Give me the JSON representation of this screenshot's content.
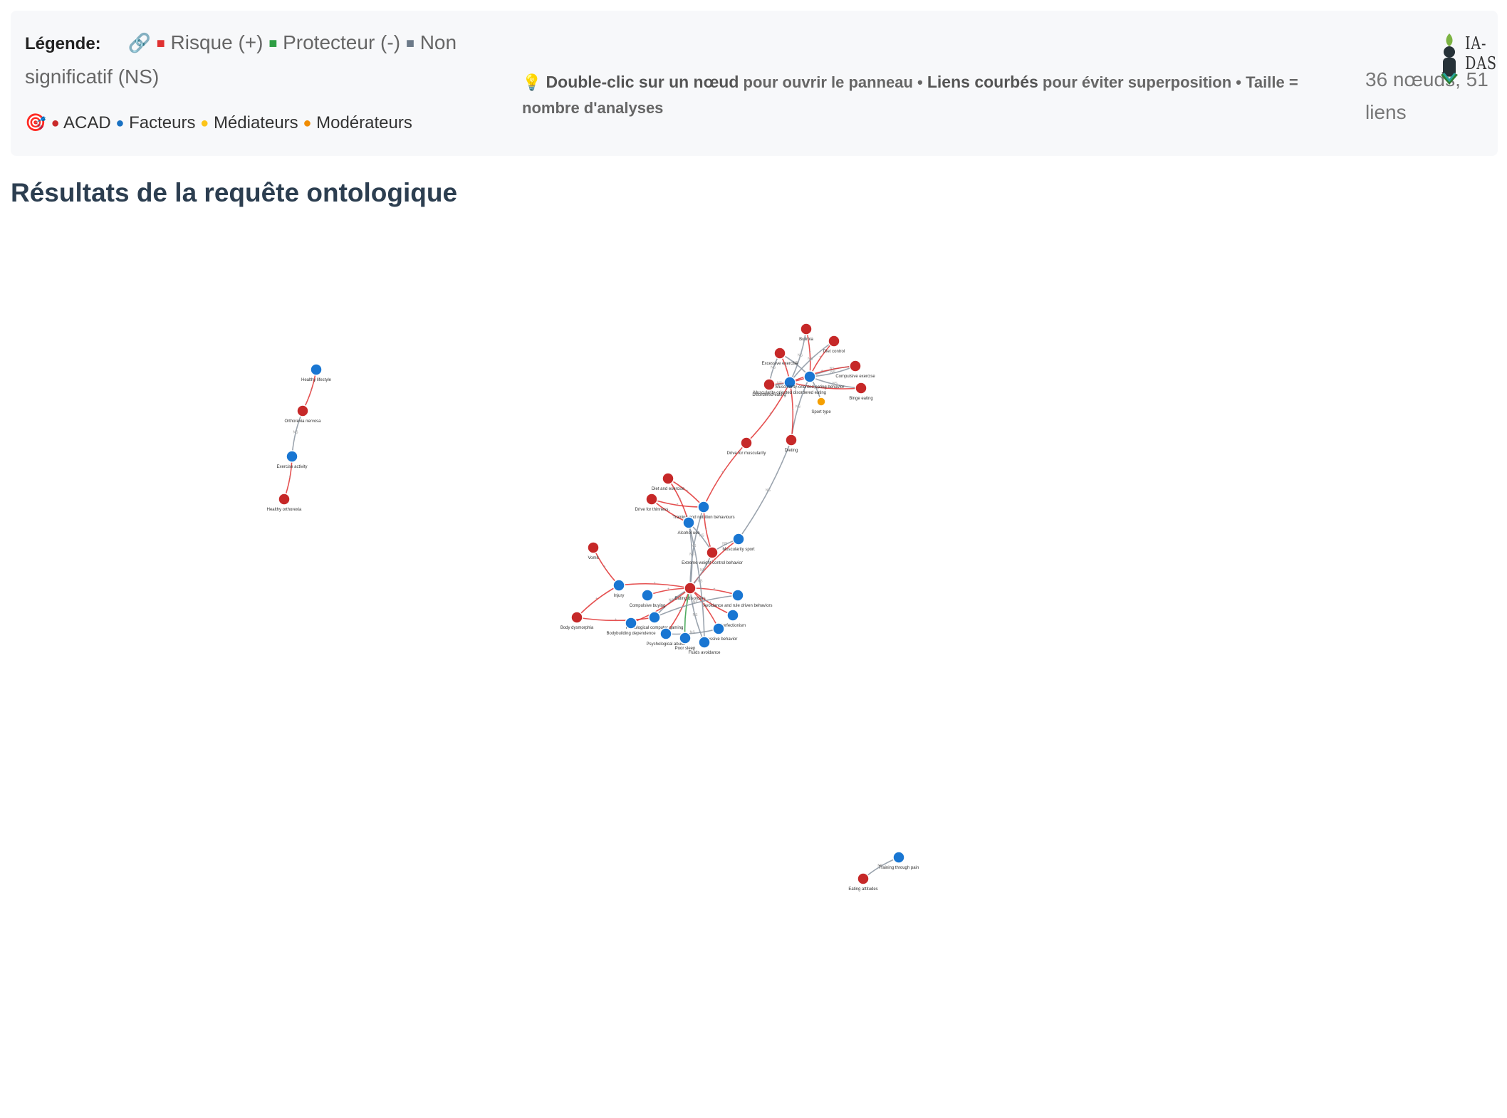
{
  "legend": {
    "title": "Légende:",
    "link_icon": "link-icon",
    "items": [
      {
        "label": "Risque (+)",
        "color": "#e03131"
      },
      {
        "label": "Protecteur (-)",
        "color": "#2f9e44"
      },
      {
        "label": "Non significatif (NS)",
        "color": "#6c7a89"
      }
    ],
    "target_icon": "target-icon",
    "nodes": [
      {
        "label": "ACAD",
        "color": "#c92a2a"
      },
      {
        "label": "Facteurs",
        "color": "#1971c2"
      },
      {
        "label": "Médiateurs",
        "color": "#fcc419"
      },
      {
        "label": "Modérateurs",
        "color": "#f08c00"
      }
    ]
  },
  "hint": {
    "icon": "lightbulb-icon",
    "part1_bold": "Double-clic sur un nœud",
    "part2": "pour ouvrir le panneau •",
    "part3_bold": "Liens courbés",
    "part4": "pour éviter superposition • Taille = nombre d'analyses"
  },
  "counts": "36 nœuds, 51 liens",
  "logo": {
    "text": "IA-DAS"
  },
  "page_title": "Résultats de la requête ontologique",
  "graph": {
    "colors": {
      "acad": "#c62828",
      "factor": "#1976d2",
      "moderator": "#f59f00",
      "risk": "#e03131",
      "protective": "#2f9e44",
      "ns": "#8a94a0"
    },
    "nodes": [
      {
        "id": "healthy_lifestyle",
        "label": "Healthy lifestyle",
        "type": "factor"
      },
      {
        "id": "orthorexia_nervosa",
        "label": "Orthorexia nervosa",
        "type": "acad"
      },
      {
        "id": "exercise_activity",
        "label": "Exercise activity",
        "type": "factor"
      },
      {
        "id": "healthy_orthorexia",
        "label": "Healthy orthorexia",
        "type": "acad"
      },
      {
        "id": "bulimia",
        "label": "Bulimia",
        "type": "acad"
      },
      {
        "id": "diet_control",
        "label": "Diet control",
        "type": "acad"
      },
      {
        "id": "excessive_exercise",
        "label": "Excessive exercise",
        "type": "acad"
      },
      {
        "id": "compulsive_exercise",
        "label": "Compulsive exercise",
        "type": "acad"
      },
      {
        "id": "binge_eating",
        "label": "Binge eating",
        "type": "acad"
      },
      {
        "id": "disordered_eating",
        "label": "Disordered eating",
        "type": "acad"
      },
      {
        "id": "hub_a",
        "label": "Muscularity-oriented disordered eating",
        "type": "factor"
      },
      {
        "id": "hub_b",
        "label": "Muscularity-oriented eating behavior",
        "type": "factor"
      },
      {
        "id": "sport_type",
        "label": "Sport type",
        "type": "moderator"
      },
      {
        "id": "drive_muscularity",
        "label": "Drive for muscularity",
        "type": "acad"
      },
      {
        "id": "dieting",
        "label": "Dieting",
        "type": "acad"
      },
      {
        "id": "diet_exercise",
        "label": "Diet and exercise",
        "type": "acad"
      },
      {
        "id": "drive_thinness",
        "label": "Drive for thinness",
        "type": "acad"
      },
      {
        "id": "training_nutrition",
        "label": "Training and nutrition behaviours",
        "type": "factor"
      },
      {
        "id": "alcohol_use",
        "label": "Alcohol use",
        "type": "factor"
      },
      {
        "id": "muscularity_sport",
        "label": "Muscularity sport",
        "type": "factor"
      },
      {
        "id": "extreme_weight",
        "label": "Extreme weight control behavior",
        "type": "acad"
      },
      {
        "id": "vomit",
        "label": "Vomit",
        "type": "acad"
      },
      {
        "id": "injury",
        "label": "Injury",
        "type": "factor"
      },
      {
        "id": "eating_disorders",
        "label": "Eating disorders",
        "type": "acad"
      },
      {
        "id": "compulsive_buying",
        "label": "Compulsive buying",
        "type": "factor"
      },
      {
        "id": "avoidance",
        "label": "Avoidance and rule driven behaviors",
        "type": "factor"
      },
      {
        "id": "body_dysmorphia",
        "label": "Body dysmorphia",
        "type": "acad"
      },
      {
        "id": "pathological_gaming",
        "label": "Pathological computer gaming",
        "type": "factor"
      },
      {
        "id": "bodybuilding",
        "label": "Bodybuilding dependence",
        "type": "factor"
      },
      {
        "id": "perfectionism",
        "label": "Perfectionism",
        "type": "factor"
      },
      {
        "id": "psychological_abuse",
        "label": "Psychological abuse",
        "type": "factor"
      },
      {
        "id": "poor_sleep",
        "label": "Poor sleep",
        "type": "factor"
      },
      {
        "id": "obsessive",
        "label": "Obsessive behavior",
        "type": "factor"
      },
      {
        "id": "fluids",
        "label": "Fluids avoidance",
        "type": "factor"
      },
      {
        "id": "training_pain",
        "label": "Training through pain",
        "type": "factor"
      },
      {
        "id": "eating_attitudes",
        "label": "Eating attitudes",
        "type": "acad"
      }
    ],
    "edges": [
      {
        "s": "healthy_lifestyle",
        "t": "orthorexia_nervosa",
        "kind": "risk",
        "label": "+"
      },
      {
        "s": "orthorexia_nervosa",
        "t": "exercise_activity",
        "kind": "ns",
        "label": "NS"
      },
      {
        "s": "exercise_activity",
        "t": "healthy_orthorexia",
        "kind": "risk",
        "label": "+"
      },
      {
        "s": "hub_b",
        "t": "bulimia",
        "kind": "risk",
        "label": "+"
      },
      {
        "s": "hub_b",
        "t": "diet_control",
        "kind": "risk",
        "label": "+"
      },
      {
        "s": "hub_b",
        "t": "excessive_exercise",
        "kind": "ns",
        "label": "NS"
      },
      {
        "s": "hub_b",
        "t": "compulsive_exercise",
        "kind": "ns",
        "label": "NS"
      },
      {
        "s": "hub_b",
        "t": "binge_eating",
        "kind": "ns",
        "label": "NS"
      },
      {
        "s": "hub_b",
        "t": "disordered_eating",
        "kind": "risk",
        "label": "+"
      },
      {
        "s": "hub_a",
        "t": "bulimia",
        "kind": "ns",
        "label": "NS"
      },
      {
        "s": "hub_a",
        "t": "diet_control",
        "kind": "ns",
        "label": "NS"
      },
      {
        "s": "hub_a",
        "t": "excessive_exercise",
        "kind": "risk",
        "label": "+"
      },
      {
        "s": "hub_a",
        "t": "compulsive_exercise",
        "kind": "risk",
        "label": "+"
      },
      {
        "s": "hub_a",
        "t": "binge_eating",
        "kind": "risk",
        "label": "+"
      },
      {
        "s": "hub_a",
        "t": "disordered_eating",
        "kind": "ns",
        "label": "NS"
      },
      {
        "s": "sport_type",
        "t": "hub_b",
        "kind": "ns",
        "label": "NS"
      },
      {
        "s": "hub_a",
        "t": "drive_muscularity",
        "kind": "risk",
        "label": "+"
      },
      {
        "s": "hub_b",
        "t": "dieting",
        "kind": "ns",
        "label": "NS"
      },
      {
        "s": "hub_a",
        "t": "dieting",
        "kind": "risk",
        "label": "+"
      },
      {
        "s": "drive_muscularity",
        "t": "training_nutrition",
        "kind": "risk",
        "label": "+"
      },
      {
        "s": "dieting",
        "t": "muscularity_sport",
        "kind": "ns",
        "label": "NS"
      },
      {
        "s": "training_nutrition",
        "t": "diet_exercise",
        "kind": "risk",
        "label": "+"
      },
      {
        "s": "training_nutrition",
        "t": "drive_thinness",
        "kind": "risk",
        "label": "+"
      },
      {
        "s": "alcohol_use",
        "t": "diet_exercise",
        "kind": "risk",
        "label": "+"
      },
      {
        "s": "alcohol_use",
        "t": "drive_thinness",
        "kind": "risk",
        "label": "+"
      },
      {
        "s": "training_nutrition",
        "t": "extreme_weight",
        "kind": "risk",
        "label": "+"
      },
      {
        "s": "alcohol_use",
        "t": "extreme_weight",
        "kind": "ns",
        "label": "NS"
      },
      {
        "s": "muscularity_sport",
        "t": "extreme_weight",
        "kind": "ns",
        "label": "NS"
      },
      {
        "s": "alcohol_use",
        "t": "eating_disorders",
        "kind": "ns",
        "label": "NS"
      },
      {
        "s": "muscularity_sport",
        "t": "eating_disorders",
        "kind": "risk",
        "label": "+"
      },
      {
        "s": "extreme_weight",
        "t": "eating_disorders",
        "kind": "ns",
        "label": "NS"
      },
      {
        "s": "training_nutrition",
        "t": "eating_disorders",
        "kind": "ns",
        "label": "NS"
      },
      {
        "s": "injury",
        "t": "vomit",
        "kind": "risk",
        "label": "+"
      },
      {
        "s": "injury",
        "t": "body_dysmorphia",
        "kind": "risk",
        "label": "+"
      },
      {
        "s": "injury",
        "t": "eating_disorders",
        "kind": "risk",
        "label": "+"
      },
      {
        "s": "body_dysmorphia",
        "t": "pathological_gaming",
        "kind": "risk",
        "label": "+"
      },
      {
        "s": "compulsive_buying",
        "t": "eating_disorders",
        "kind": "risk",
        "label": "+"
      },
      {
        "s": "avoidance",
        "t": "eating_disorders",
        "kind": "risk",
        "label": "+"
      },
      {
        "s": "pathological_gaming",
        "t": "eating_disorders",
        "kind": "ns",
        "label": "NS"
      },
      {
        "s": "bodybuilding",
        "t": "eating_disorders",
        "kind": "risk",
        "label": "+"
      },
      {
        "s": "perfectionism",
        "t": "eating_disorders",
        "kind": "risk",
        "label": "+"
      },
      {
        "s": "psychological_abuse",
        "t": "eating_disorders",
        "kind": "risk",
        "label": "+"
      },
      {
        "s": "poor_sleep",
        "t": "eating_disorders",
        "kind": "protective",
        "label": "-"
      },
      {
        "s": "obsessive",
        "t": "eating_disorders",
        "kind": "risk",
        "label": "+"
      },
      {
        "s": "fluids",
        "t": "eating_disorders",
        "kind": "ns",
        "label": "NS"
      },
      {
        "s": "training_pain",
        "t": "eating_attitudes",
        "kind": "ns",
        "label": "NS"
      },
      {
        "s": "compulsive_exercise",
        "t": "hub_b",
        "kind": "ns",
        "label": "NS"
      },
      {
        "s": "excessive_exercise",
        "t": "disordered_eating",
        "kind": "ns",
        "label": "NS"
      },
      {
        "s": "pathological_gaming",
        "t": "avoidance",
        "kind": "ns",
        "label": "NS"
      },
      {
        "s": "psychological_abuse",
        "t": "obsessive",
        "kind": "ns",
        "label": "NS"
      },
      {
        "s": "alcohol_use",
        "t": "fluids",
        "kind": "ns",
        "label": "NS"
      }
    ]
  }
}
